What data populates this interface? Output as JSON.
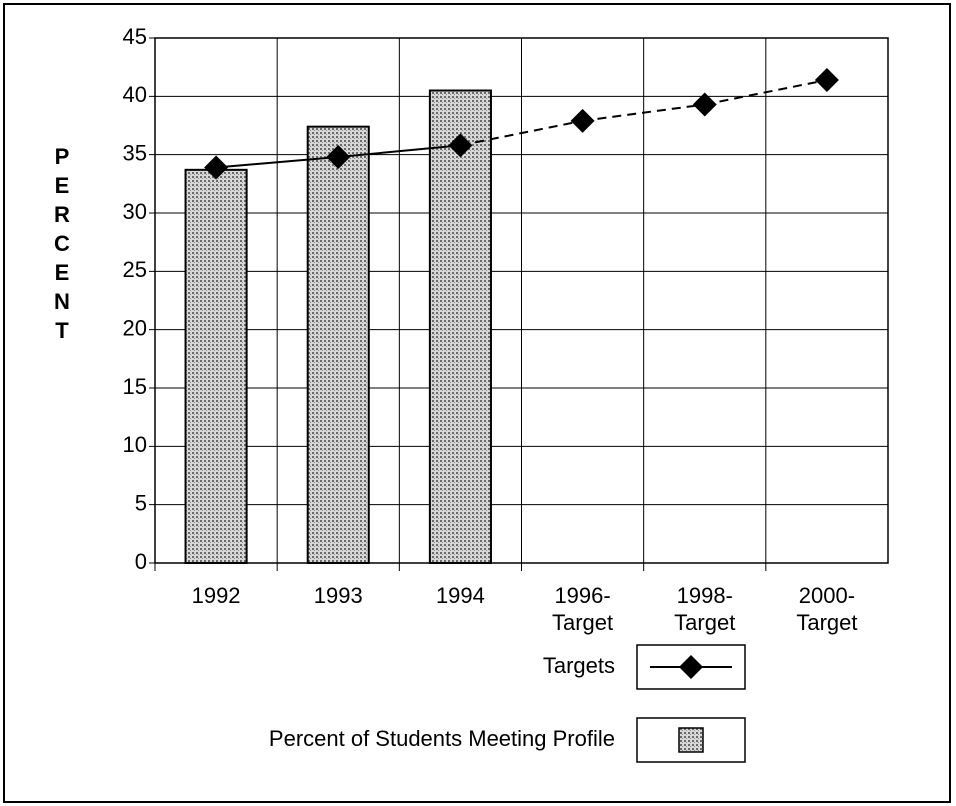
{
  "chart_data": {
    "type": "bar_line",
    "y_label": "PERCENT",
    "categories": [
      "1992",
      "1993",
      "1994",
      "1996-\nTarget",
      "1998-\nTarget",
      "2000-\nTarget"
    ],
    "series": [
      {
        "name": "Percent of Students Meeting Profile",
        "kind": "bar",
        "color": "#9a9a9a",
        "values": [
          33.7,
          37.4,
          40.5,
          null,
          null,
          null
        ]
      },
      {
        "name": "Targets",
        "kind": "line",
        "color": "#000000",
        "values": [
          33.9,
          34.8,
          35.8,
          37.9,
          39.3,
          41.4
        ],
        "segment_styles": [
          "solid",
          "solid",
          "dashed",
          "dashed",
          "dashed"
        ]
      }
    ],
    "ylim": [
      0,
      45
    ],
    "yticks": [
      0,
      5,
      10,
      15,
      20,
      25,
      30,
      35,
      40,
      45
    ],
    "grid": true
  }
}
